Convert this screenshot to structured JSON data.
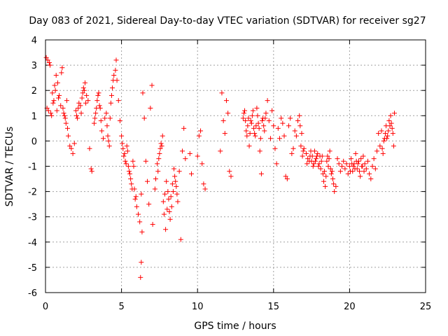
{
  "chart_data": {
    "type": "scatter",
    "title": "Day 083 of 2021, Sidereal Day-to-day VTEC variation (SDTVAR) for receiver sg27",
    "xlabel": "GPS time / hours",
    "ylabel": "SDTVAR / TECUs",
    "xlim": [
      0,
      25
    ],
    "ylim": [
      -6,
      4
    ],
    "xticks": [
      0,
      5,
      10,
      15,
      20,
      25
    ],
    "yticks": [
      -6,
      -5,
      -4,
      -3,
      -2,
      -1,
      0,
      1,
      2,
      3,
      4
    ],
    "xtick_labels": [
      "0",
      "5",
      "10",
      "15",
      "20",
      "25"
    ],
    "ytick_labels": [
      "-6",
      "-5",
      "-4",
      "-3",
      "-2",
      "-1",
      "0",
      "1",
      "2",
      "3",
      "4"
    ],
    "grid": true,
    "marker": "+",
    "color": "#ff0000",
    "series": [
      {
        "name": "SDTVAR",
        "points": [
          [
            0.05,
            3.3
          ],
          [
            0.15,
            3.2
          ],
          [
            0.25,
            3.1
          ],
          [
            0.3,
            3.0
          ],
          [
            0.1,
            1.3
          ],
          [
            0.2,
            1.2
          ],
          [
            0.35,
            1.1
          ],
          [
            0.45,
            1.9
          ],
          [
            0.5,
            1.5
          ],
          [
            0.6,
            2.2
          ],
          [
            0.7,
            2.6
          ],
          [
            0.8,
            2.3
          ],
          [
            0.9,
            1.8
          ],
          [
            1.0,
            1.4
          ],
          [
            1.05,
            2.7
          ],
          [
            1.1,
            2.9
          ],
          [
            1.2,
            1.1
          ],
          [
            1.3,
            0.9
          ],
          [
            1.4,
            1.6
          ],
          [
            1.5,
            0.2
          ],
          [
            1.6,
            -0.2
          ],
          [
            1.7,
            -0.3
          ],
          [
            1.8,
            -0.5
          ],
          [
            1.9,
            -0.1
          ],
          [
            2.0,
            1.2
          ],
          [
            2.1,
            0.9
          ],
          [
            2.2,
            1.5
          ],
          [
            2.3,
            1.4
          ],
          [
            2.4,
            1.7
          ],
          [
            2.5,
            2.1
          ],
          [
            2.6,
            2.3
          ],
          [
            2.7,
            1.8
          ],
          [
            2.8,
            1.6
          ],
          [
            2.9,
            -0.3
          ],
          [
            3.0,
            -1.1
          ],
          [
            3.05,
            -1.2
          ],
          [
            3.2,
            0.7
          ],
          [
            3.3,
            1.1
          ],
          [
            3.4,
            1.6
          ],
          [
            3.5,
            1.9
          ],
          [
            3.6,
            1.3
          ],
          [
            3.7,
            0.4
          ],
          [
            3.8,
            0.1
          ],
          [
            3.9,
            0.9
          ],
          [
            4.0,
            1.1
          ],
          [
            4.1,
            0.2
          ],
          [
            4.2,
            -0.2
          ],
          [
            4.3,
            1.5
          ],
          [
            4.4,
            2.1
          ],
          [
            4.5,
            2.6
          ],
          [
            4.6,
            2.8
          ],
          [
            4.65,
            3.2
          ],
          [
            4.7,
            2.4
          ],
          [
            4.8,
            1.6
          ],
          [
            4.9,
            0.8
          ],
          [
            5.0,
            0.2
          ],
          [
            5.1,
            -0.3
          ],
          [
            5.2,
            -0.5
          ],
          [
            5.3,
            -0.9
          ],
          [
            5.4,
            -0.4
          ],
          [
            5.5,
            -1.2
          ],
          [
            5.6,
            -1.5
          ],
          [
            5.7,
            -1.9
          ],
          [
            5.8,
            -1.0
          ],
          [
            5.9,
            -2.3
          ],
          [
            6.0,
            -2.6
          ],
          [
            6.1,
            -2.9
          ],
          [
            6.2,
            -3.2
          ],
          [
            6.3,
            -2.1
          ],
          [
            6.35,
            -3.6
          ],
          [
            6.3,
            -4.8
          ],
          [
            6.25,
            -5.4
          ],
          [
            6.4,
            1.9
          ],
          [
            6.5,
            0.9
          ],
          [
            6.6,
            -0.8
          ],
          [
            6.7,
            -1.6
          ],
          [
            6.8,
            -2.5
          ],
          [
            6.9,
            1.3
          ],
          [
            7.0,
            2.2
          ],
          [
            7.05,
            -3.3
          ],
          [
            7.2,
            -1.9
          ],
          [
            7.4,
            -1.2
          ],
          [
            7.5,
            -0.5
          ],
          [
            7.6,
            -0.1
          ],
          [
            7.7,
            0.2
          ],
          [
            7.8,
            -2.9
          ],
          [
            7.9,
            -3.5
          ],
          [
            8.0,
            -2.7
          ],
          [
            8.1,
            -2.3
          ],
          [
            8.2,
            -3.1
          ],
          [
            8.3,
            -2.6
          ],
          [
            8.4,
            -2.0
          ],
          [
            8.5,
            -1.4
          ],
          [
            8.6,
            -1.8
          ],
          [
            8.7,
            -2.4
          ],
          [
            8.8,
            -1.2
          ],
          [
            8.9,
            -3.9
          ],
          [
            9.0,
            -0.4
          ],
          [
            9.1,
            0.5
          ],
          [
            9.2,
            -0.7
          ],
          [
            9.5,
            -0.5
          ],
          [
            9.6,
            -1.3
          ],
          [
            10.0,
            -0.6
          ],
          [
            10.1,
            0.2
          ],
          [
            10.2,
            0.4
          ],
          [
            10.3,
            -0.9
          ],
          [
            10.4,
            -1.7
          ],
          [
            10.5,
            -1.9
          ],
          [
            11.5,
            -0.4
          ],
          [
            11.6,
            1.9
          ],
          [
            11.7,
            0.8
          ],
          [
            11.8,
            0.3
          ],
          [
            11.9,
            1.6
          ],
          [
            12.0,
            1.1
          ],
          [
            12.1,
            -1.2
          ],
          [
            12.2,
            -1.4
          ],
          [
            13.0,
            0.9
          ],
          [
            13.1,
            1.2
          ],
          [
            13.2,
            0.4
          ],
          [
            13.3,
            0.6
          ],
          [
            13.4,
            -0.2
          ],
          [
            13.5,
            0.8
          ],
          [
            13.6,
            1.0
          ],
          [
            13.7,
            0.5
          ],
          [
            13.8,
            0.2
          ],
          [
            13.9,
            1.3
          ],
          [
            14.0,
            0.7
          ],
          [
            14.1,
            -0.4
          ],
          [
            14.2,
            -1.3
          ],
          [
            14.3,
            0.9
          ],
          [
            14.4,
            0.4
          ],
          [
            14.5,
            1.1
          ],
          [
            14.6,
            1.6
          ],
          [
            14.7,
            0.8
          ],
          [
            14.8,
            0.1
          ],
          [
            14.9,
            1.2
          ],
          [
            15.0,
            0.6
          ],
          [
            15.1,
            -0.3
          ],
          [
            15.2,
            -0.9
          ],
          [
            15.3,
            0.5
          ],
          [
            15.4,
            0.1
          ],
          [
            15.5,
            0.9
          ],
          [
            15.6,
            0.7
          ],
          [
            15.7,
            0.2
          ],
          [
            15.8,
            -1.4
          ],
          [
            15.9,
            -1.5
          ],
          [
            16.0,
            0.6
          ],
          [
            16.1,
            0.9
          ],
          [
            16.2,
            -0.5
          ],
          [
            16.3,
            -0.3
          ],
          [
            16.4,
            0.4
          ],
          [
            16.5,
            0.2
          ],
          [
            16.6,
            0.8
          ],
          [
            16.7,
            1.0
          ],
          [
            16.8,
            -0.2
          ],
          [
            16.9,
            -0.6
          ],
          [
            17.0,
            -0.3
          ],
          [
            17.2,
            -0.9
          ],
          [
            17.4,
            -0.6
          ],
          [
            17.5,
            -0.8
          ],
          [
            17.6,
            -1.0
          ],
          [
            17.7,
            -0.4
          ],
          [
            17.8,
            -0.7
          ],
          [
            17.9,
            -0.5
          ],
          [
            18.0,
            -0.9
          ],
          [
            18.1,
            -1.1
          ],
          [
            18.2,
            -0.6
          ],
          [
            18.3,
            -1.6
          ],
          [
            18.4,
            -1.8
          ],
          [
            18.5,
            -0.8
          ],
          [
            18.6,
            -1.0
          ],
          [
            18.7,
            -0.4
          ],
          [
            18.8,
            -1.3
          ],
          [
            18.9,
            -1.5
          ],
          [
            19.0,
            -2.0
          ],
          [
            19.1,
            -1.8
          ],
          [
            19.2,
            -0.7
          ],
          [
            19.3,
            -0.9
          ],
          [
            19.4,
            -1.2
          ],
          [
            19.5,
            -1.0
          ],
          [
            19.6,
            -0.8
          ],
          [
            19.7,
            -1.1
          ],
          [
            19.8,
            -0.9
          ],
          [
            19.9,
            -1.3
          ],
          [
            20.0,
            -1.0
          ],
          [
            20.1,
            -0.7
          ],
          [
            20.2,
            -1.2
          ],
          [
            20.3,
            -0.9
          ],
          [
            20.4,
            -0.5
          ],
          [
            20.5,
            -1.1
          ],
          [
            20.6,
            -0.8
          ],
          [
            20.7,
            -1.4
          ],
          [
            20.8,
            -1.0
          ],
          [
            20.9,
            -0.6
          ],
          [
            21.0,
            -0.9
          ],
          [
            21.1,
            -1.1
          ],
          [
            21.2,
            -0.8
          ],
          [
            21.3,
            -1.3
          ],
          [
            21.4,
            -1.5
          ],
          [
            21.5,
            -1.0
          ],
          [
            21.6,
            -0.7
          ],
          [
            21.7,
            -1.1
          ],
          [
            21.8,
            -0.4
          ],
          [
            21.9,
            0.3
          ],
          [
            22.0,
            -0.2
          ],
          [
            22.1,
            0.4
          ],
          [
            22.2,
            -0.5
          ],
          [
            22.3,
            0.1
          ],
          [
            22.4,
            0.6
          ],
          [
            22.5,
            0.2
          ],
          [
            22.6,
            0.8
          ],
          [
            22.7,
            1.0
          ],
          [
            22.8,
            0.5
          ],
          [
            22.9,
            -0.2
          ],
          [
            22.95,
            1.1
          ],
          [
            0.4,
            1.0
          ],
          [
            0.55,
            1.6
          ],
          [
            0.65,
            2.0
          ],
          [
            0.75,
            1.2
          ],
          [
            0.85,
            1.7
          ],
          [
            1.15,
            1.3
          ],
          [
            1.25,
            1.0
          ],
          [
            1.35,
            0.7
          ],
          [
            1.45,
            0.5
          ],
          [
            2.05,
            1.0
          ],
          [
            2.15,
            1.3
          ],
          [
            2.35,
            1.1
          ],
          [
            2.45,
            1.9
          ],
          [
            2.55,
            2.0
          ],
          [
            2.65,
            1.5
          ],
          [
            3.25,
            0.9
          ],
          [
            3.35,
            1.3
          ],
          [
            3.45,
            1.8
          ],
          [
            3.55,
            1.4
          ],
          [
            3.65,
            0.8
          ],
          [
            4.05,
            0.6
          ],
          [
            4.15,
            0.0
          ],
          [
            4.25,
            0.9
          ],
          [
            4.35,
            1.8
          ],
          [
            4.45,
            2.4
          ],
          [
            5.05,
            -0.1
          ],
          [
            5.15,
            -0.6
          ],
          [
            5.25,
            -0.8
          ],
          [
            5.35,
            -0.2
          ],
          [
            5.45,
            -1.0
          ],
          [
            5.55,
            -1.3
          ],
          [
            5.65,
            -1.7
          ],
          [
            5.75,
            -0.8
          ],
          [
            5.85,
            -1.9
          ],
          [
            5.95,
            -2.2
          ],
          [
            7.25,
            -1.5
          ],
          [
            7.35,
            -0.9
          ],
          [
            7.45,
            -0.7
          ],
          [
            7.55,
            -0.3
          ],
          [
            7.65,
            -0.2
          ],
          [
            7.75,
            -2.4
          ],
          [
            7.85,
            -2.1
          ],
          [
            7.95,
            -1.6
          ],
          [
            8.05,
            -2.0
          ],
          [
            8.15,
            -2.8
          ],
          [
            8.25,
            -2.2
          ],
          [
            8.35,
            -1.7
          ],
          [
            8.45,
            -1.1
          ],
          [
            8.55,
            -1.6
          ],
          [
            8.65,
            -2.1
          ],
          [
            13.05,
            1.1
          ],
          [
            13.15,
            0.8
          ],
          [
            13.25,
            0.2
          ],
          [
            13.35,
            0.9
          ],
          [
            13.45,
            0.3
          ],
          [
            13.55,
            0.7
          ],
          [
            13.65,
            1.2
          ],
          [
            13.75,
            0.3
          ],
          [
            13.85,
            0.6
          ],
          [
            13.95,
            1.0
          ],
          [
            14.05,
            0.5
          ],
          [
            14.15,
            0.1
          ],
          [
            14.25,
            0.8
          ],
          [
            14.35,
            0.6
          ],
          [
            14.45,
            0.9
          ],
          [
            18.05,
            -0.6
          ],
          [
            18.15,
            -0.8
          ],
          [
            18.25,
            -1.3
          ],
          [
            18.35,
            -1.2
          ],
          [
            18.45,
            -1.4
          ],
          [
            18.55,
            -0.6
          ],
          [
            18.65,
            -0.7
          ],
          [
            18.75,
            -1.1
          ],
          [
            18.85,
            -1.2
          ],
          [
            18.95,
            -1.7
          ],
          [
            20.05,
            -1.2
          ],
          [
            20.15,
            -0.9
          ],
          [
            20.25,
            -1.0
          ],
          [
            20.35,
            -1.1
          ],
          [
            20.45,
            -0.8
          ],
          [
            20.55,
            -0.9
          ],
          [
            20.65,
            -1.2
          ],
          [
            20.75,
            -0.7
          ],
          [
            20.85,
            -1.0
          ],
          [
            20.95,
            -1.2
          ],
          [
            22.15,
            -0.3
          ],
          [
            22.25,
            0.0
          ],
          [
            22.35,
            0.3
          ],
          [
            22.45,
            0.1
          ],
          [
            22.55,
            0.4
          ],
          [
            22.65,
            0.6
          ],
          [
            22.75,
            0.7
          ],
          [
            22.85,
            0.3
          ],
          [
            17.15,
            -0.5
          ],
          [
            17.25,
            -0.7
          ],
          [
            17.35,
            -0.8
          ],
          [
            17.45,
            -0.4
          ],
          [
            17.55,
            -0.6
          ],
          [
            17.65,
            -0.9
          ],
          [
            17.75,
            -0.8
          ],
          [
            17.85,
            -0.6
          ],
          [
            17.95,
            -1.0
          ],
          [
            16.75,
            0.6
          ],
          [
            16.85,
            0.3
          ],
          [
            16.95,
            -0.4
          ]
        ]
      }
    ]
  }
}
